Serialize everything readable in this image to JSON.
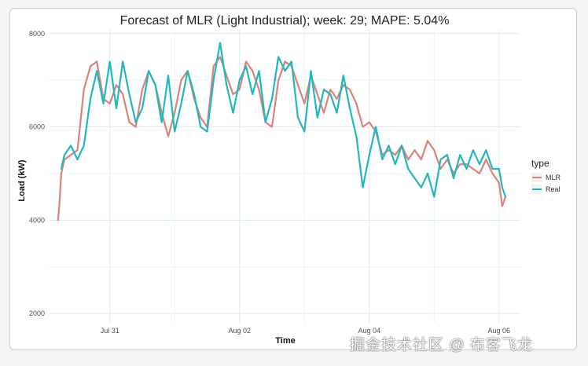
{
  "chart_data": {
    "type": "line",
    "title": "Forecast of MLR (Light Industrial); week: 29; MAPE: 5.04%",
    "xlabel": "Time",
    "ylabel": "Load (kW)",
    "x_ticks": [
      "Jul 31",
      "Aug 02",
      "Aug 04",
      "Aug 06"
    ],
    "x_tick_days": [
      1,
      3,
      5,
      7
    ],
    "xlim_days": [
      0.07,
      7.33
    ],
    "y_ticks": [
      2000,
      4000,
      6000,
      8000
    ],
    "ylim": [
      1800,
      8080
    ],
    "legend": {
      "title": "type",
      "position": "right"
    },
    "series": [
      {
        "name": "MLR",
        "color": "#d9837b",
        "x_days": [
          0.2,
          0.22,
          0.25,
          0.3,
          0.4,
          0.5,
          0.6,
          0.7,
          0.8,
          0.9,
          1.0,
          1.1,
          1.2,
          1.3,
          1.4,
          1.5,
          1.6,
          1.7,
          1.8,
          1.9,
          2.0,
          2.1,
          2.2,
          2.3,
          2.4,
          2.5,
          2.6,
          2.7,
          2.8,
          2.9,
          3.0,
          3.1,
          3.2,
          3.3,
          3.4,
          3.5,
          3.6,
          3.7,
          3.8,
          3.9,
          4.0,
          4.1,
          4.2,
          4.3,
          4.4,
          4.5,
          4.6,
          4.7,
          4.8,
          4.9,
          5.0,
          5.1,
          5.2,
          5.3,
          5.4,
          5.5,
          5.6,
          5.7,
          5.8,
          5.9,
          6.0,
          6.1,
          6.2,
          6.3,
          6.4,
          6.5,
          6.6,
          6.7,
          6.8,
          6.9,
          7.0,
          7.05,
          7.1
        ],
        "values": [
          4000,
          4300,
          5000,
          5300,
          5400,
          5500,
          6800,
          7300,
          7400,
          6600,
          6500,
          6900,
          6700,
          6100,
          6000,
          6800,
          7200,
          6900,
          6300,
          5800,
          6300,
          7000,
          7200,
          6600,
          6200,
          6000,
          7300,
          7500,
          7100,
          6700,
          6800,
          7400,
          7200,
          6800,
          6100,
          6000,
          7000,
          7400,
          7300,
          6900,
          6500,
          7100,
          6700,
          6300,
          6800,
          6600,
          6900,
          6800,
          6500,
          6000,
          6100,
          5900,
          5400,
          5500,
          5400,
          5600,
          5300,
          5500,
          5300,
          5700,
          5500,
          5100,
          5300,
          5000,
          5200,
          5200,
          5100,
          5000,
          5300,
          5000,
          4800,
          4300,
          4500
        ]
      },
      {
        "name": "Real",
        "color": "#22b7bc",
        "x_days": [
          0.25,
          0.3,
          0.4,
          0.5,
          0.6,
          0.7,
          0.8,
          0.9,
          1.0,
          1.1,
          1.2,
          1.3,
          1.4,
          1.5,
          1.6,
          1.7,
          1.8,
          1.9,
          2.0,
          2.1,
          2.2,
          2.3,
          2.4,
          2.5,
          2.6,
          2.7,
          2.8,
          2.9,
          3.0,
          3.1,
          3.2,
          3.3,
          3.4,
          3.5,
          3.6,
          3.7,
          3.8,
          3.9,
          4.0,
          4.1,
          4.2,
          4.3,
          4.4,
          4.5,
          4.6,
          4.7,
          4.8,
          4.9,
          5.0,
          5.1,
          5.2,
          5.3,
          5.4,
          5.5,
          5.6,
          5.7,
          5.8,
          5.9,
          6.0,
          6.1,
          6.2,
          6.3,
          6.4,
          6.5,
          6.6,
          6.7,
          6.8,
          6.9,
          7.0,
          7.05,
          7.1
        ],
        "values": [
          5100,
          5400,
          5600,
          5300,
          5600,
          6600,
          7200,
          6500,
          7400,
          6400,
          7400,
          6700,
          6100,
          6400,
          7200,
          6900,
          6100,
          7100,
          5900,
          6500,
          7200,
          6700,
          6000,
          5900,
          7000,
          7800,
          6900,
          6300,
          7000,
          7300,
          6700,
          7200,
          6100,
          6600,
          7500,
          7200,
          7400,
          6200,
          5900,
          7200,
          6200,
          6800,
          6700,
          6300,
          7100,
          6400,
          5800,
          4700,
          5400,
          6000,
          5300,
          5600,
          5200,
          5600,
          5100,
          4900,
          4700,
          5000,
          4500,
          5300,
          5400,
          4900,
          5400,
          5100,
          5500,
          5200,
          5500,
          5100,
          5100,
          4700,
          4500
        ]
      }
    ]
  }
}
